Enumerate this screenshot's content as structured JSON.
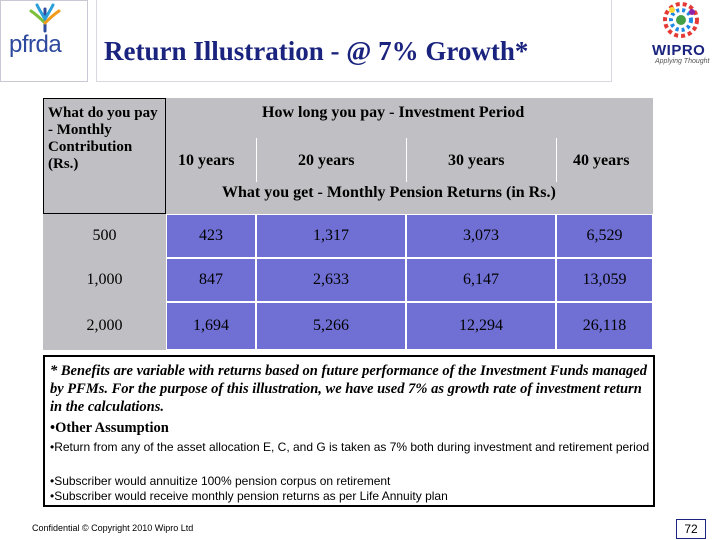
{
  "header": {
    "left_logo": "pfrda",
    "title": "Return Illustration - @ 7% Growth*",
    "right_logo": "WIPRO",
    "right_logo_tagline": "Applying Thought"
  },
  "table": {
    "row_header": "What do you pay - Monthly Contribution (Rs.)",
    "period_header": "How long you pay - Investment Period",
    "periods": [
      "10 years",
      "20 years",
      "30 years",
      "40 years"
    ],
    "returns_header": "What you get - Monthly Pension Returns (in Rs.)",
    "rows": [
      {
        "contribution": "500",
        "values": [
          "423",
          "1,317",
          "3,073",
          "6,529"
        ]
      },
      {
        "contribution": "1,000",
        "values": [
          "847",
          "2,633",
          "6,147",
          "13,059"
        ]
      },
      {
        "contribution": "2,000",
        "values": [
          "1,694",
          "5,266",
          "12,294",
          "26,118"
        ]
      }
    ]
  },
  "notes": {
    "main": "* Benefits are variable with returns based on future performance of the Investment Funds managed by PFMs. For the purpose of this illustration, we have used 7% as growth rate of investment return in the calculations.",
    "assumption_heading": "•Other Assumption",
    "bullets": [
      "•Return from any of the asset allocation E, C, and G is taken as 7% both during investment and retirement period",
      "•Subscriber would annuitize 100% pension corpus on retirement",
      "•Subscriber would receive monthly pension returns as per Life Annuity plan"
    ]
  },
  "footer": {
    "confidential": "Confidential © Copyright 2010 Wipro Ltd",
    "page_number": "72"
  },
  "colors": {
    "title": "#1a237e",
    "header_grey": "#c0c0c4",
    "cell_blue": "#7070d4"
  }
}
